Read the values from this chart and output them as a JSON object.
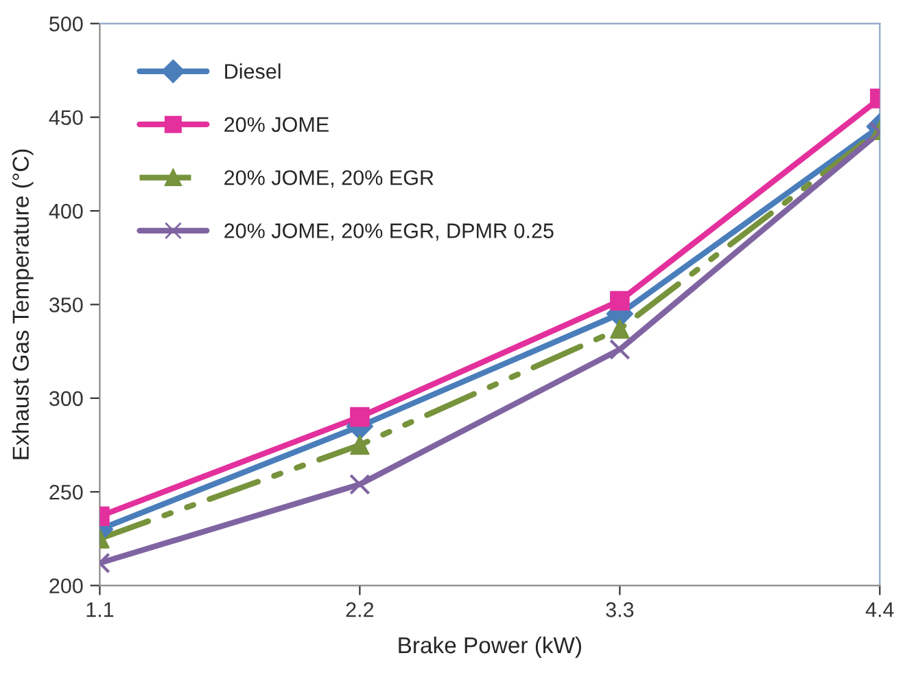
{
  "chart_data": {
    "type": "line",
    "xlabel": "Brake Power (kW)",
    "ylabel": "Exhaust Gas Temperature (°C)",
    "x": [
      1.1,
      2.2,
      3.3,
      4.4
    ],
    "xlim": [
      1.1,
      4.4
    ],
    "xticks": [
      {
        "value": 1.1,
        "label": "1.1"
      },
      {
        "value": 2.2,
        "label": "2.2"
      },
      {
        "value": 3.3,
        "label": "3.3"
      },
      {
        "value": 4.4,
        "label": "4.4"
      }
    ],
    "ylim": [
      200,
      500
    ],
    "yticks": [
      200,
      250,
      300,
      350,
      400,
      450,
      500
    ],
    "grid": false,
    "legend": "top left",
    "series": [
      {
        "name": "Diesel",
        "color": "#4a7ebb",
        "values": [
          230,
          285,
          345,
          445
        ],
        "marker": "diamond",
        "line_style": "solid"
      },
      {
        "name": "20% JOME",
        "color": "#e3309c",
        "values": [
          237,
          290,
          352,
          460
        ],
        "marker": "square",
        "line_style": "solid"
      },
      {
        "name": "20% JOME, 20% EGR",
        "color": "#77933c",
        "values": [
          225,
          275,
          337,
          443
        ],
        "marker": "triangle",
        "line_style": "dashed"
      },
      {
        "name": "20% JOME, 20% EGR, DPMR 0.25",
        "color": "#8064a2",
        "values": [
          212,
          254,
          326,
          442
        ],
        "marker": "cross",
        "line_style": "solid"
      }
    ]
  }
}
